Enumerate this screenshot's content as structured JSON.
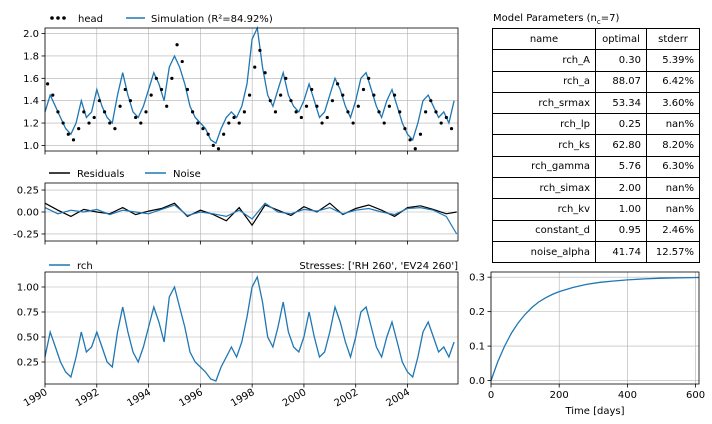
{
  "chart_data": [
    {
      "type": "line",
      "panel": "head",
      "legend": [
        "head",
        "Simulation (R²=84.92%)"
      ],
      "legend_placement": "top-left outside",
      "ylim": [
        0.95,
        2.05
      ],
      "yticks": [
        "1.0",
        "1.2",
        "1.4",
        "1.6",
        "1.8",
        "2.0"
      ],
      "grid": true,
      "series": [
        {
          "name": "head",
          "style": "points",
          "x": [
            1990.1,
            1990.3,
            1990.5,
            1990.7,
            1990.9,
            1991.1,
            1991.3,
            1991.5,
            1991.7,
            1991.9,
            1992.1,
            1992.3,
            1992.5,
            1992.7,
            1992.9,
            1993.1,
            1993.3,
            1993.5,
            1993.7,
            1993.9,
            1994.1,
            1994.3,
            1994.5,
            1994.7,
            1994.9,
            1995.1,
            1995.3,
            1995.5,
            1995.7,
            1995.9,
            1996.1,
            1996.3,
            1996.5,
            1996.7,
            1996.9,
            1997.1,
            1997.3,
            1997.5,
            1997.7,
            1997.9,
            1998.1,
            1998.3,
            1998.5,
            1998.7,
            1998.9,
            1999.1,
            1999.3,
            1999.5,
            1999.7,
            1999.9,
            2000.1,
            2000.3,
            2000.5,
            2000.7,
            2000.9,
            2001.1,
            2001.3,
            2001.5,
            2001.7,
            2001.9,
            2002.1,
            2002.3,
            2002.5,
            2002.7,
            2002.9,
            2003.1,
            2003.3,
            2003.5,
            2003.7,
            2003.9,
            2004.1,
            2004.3,
            2004.5,
            2004.7,
            2004.9,
            2005.1,
            2005.3,
            2005.5,
            2005.7
          ],
          "values": [
            1.55,
            1.45,
            1.3,
            1.2,
            1.1,
            1.05,
            1.15,
            1.3,
            1.2,
            1.25,
            1.4,
            1.3,
            1.2,
            1.15,
            1.35,
            1.5,
            1.4,
            1.25,
            1.2,
            1.3,
            1.45,
            1.6,
            1.5,
            1.35,
            1.6,
            1.9,
            1.75,
            1.5,
            1.3,
            1.2,
            1.15,
            1.1,
            1.0,
            0.97,
            1.1,
            1.2,
            1.25,
            1.2,
            1.3,
            1.45,
            1.7,
            1.85,
            1.65,
            1.4,
            1.3,
            1.45,
            1.6,
            1.4,
            1.3,
            1.25,
            1.35,
            1.5,
            1.35,
            1.2,
            1.25,
            1.4,
            1.55,
            1.45,
            1.3,
            1.2,
            1.35,
            1.5,
            1.6,
            1.45,
            1.3,
            1.2,
            1.35,
            1.45,
            1.3,
            1.15,
            1.05,
            0.97,
            1.1,
            1.3,
            1.4,
            1.3,
            1.2,
            1.25,
            1.15
          ]
        },
        {
          "name": "Simulation (R²=84.92%)",
          "style": "line",
          "x": [
            1990.0,
            1990.2,
            1990.4,
            1990.6,
            1990.8,
            1991.0,
            1991.2,
            1991.4,
            1991.6,
            1991.8,
            1992.0,
            1992.2,
            1992.4,
            1992.6,
            1992.8,
            1993.0,
            1993.2,
            1993.4,
            1993.6,
            1993.8,
            1994.0,
            1994.2,
            1994.4,
            1994.6,
            1994.8,
            1995.0,
            1995.2,
            1995.4,
            1995.6,
            1995.8,
            1996.0,
            1996.2,
            1996.4,
            1996.6,
            1996.8,
            1997.0,
            1997.2,
            1997.4,
            1997.6,
            1997.8,
            1998.0,
            1998.2,
            1998.4,
            1998.6,
            1998.8,
            1999.0,
            1999.2,
            1999.4,
            1999.6,
            1999.8,
            2000.0,
            2000.2,
            2000.4,
            2000.6,
            2000.8,
            2001.0,
            2001.2,
            2001.4,
            2001.6,
            2001.8,
            2002.0,
            2002.2,
            2002.4,
            2002.6,
            2002.8,
            2003.0,
            2003.2,
            2003.4,
            2003.6,
            2003.8,
            2004.0,
            2004.2,
            2004.4,
            2004.6,
            2004.8,
            2005.0,
            2005.2,
            2005.4,
            2005.6,
            2005.8
          ],
          "values": [
            1.3,
            1.45,
            1.35,
            1.25,
            1.15,
            1.1,
            1.2,
            1.4,
            1.25,
            1.3,
            1.5,
            1.35,
            1.25,
            1.2,
            1.45,
            1.65,
            1.45,
            1.3,
            1.25,
            1.35,
            1.5,
            1.65,
            1.55,
            1.4,
            1.7,
            1.8,
            1.7,
            1.55,
            1.35,
            1.25,
            1.2,
            1.15,
            1.05,
            1.02,
            1.15,
            1.25,
            1.3,
            1.25,
            1.35,
            1.55,
            1.95,
            2.05,
            1.7,
            1.45,
            1.35,
            1.5,
            1.65,
            1.45,
            1.35,
            1.3,
            1.4,
            1.55,
            1.4,
            1.25,
            1.3,
            1.45,
            1.6,
            1.5,
            1.35,
            1.25,
            1.4,
            1.6,
            1.65,
            1.5,
            1.35,
            1.25,
            1.4,
            1.5,
            1.35,
            1.2,
            1.1,
            1.05,
            1.2,
            1.4,
            1.45,
            1.35,
            1.25,
            1.3,
            1.2,
            1.4
          ]
        }
      ]
    },
    {
      "type": "line",
      "panel": "residuals",
      "legend": [
        "Residuals",
        "Noise"
      ],
      "ylim": [
        -0.33,
        0.33
      ],
      "yticks": [
        "0.25",
        "0.00",
        "-0.25"
      ],
      "grid": true,
      "series": [
        {
          "name": "Residuals",
          "x": [
            1990.0,
            1990.5,
            1991.0,
            1991.5,
            1992.0,
            1992.5,
            1993.0,
            1993.5,
            1994.0,
            1994.5,
            1995.0,
            1995.5,
            1996.0,
            1996.5,
            1997.0,
            1997.5,
            1998.0,
            1998.5,
            1999.0,
            1999.5,
            2000.0,
            2000.5,
            2001.0,
            2001.5,
            2002.0,
            2002.5,
            2003.0,
            2003.5,
            2004.0,
            2004.5,
            2005.0,
            2005.5,
            2005.9
          ],
          "values": [
            0.1,
            0.02,
            -0.05,
            0.03,
            0.0,
            -0.02,
            0.05,
            -0.03,
            0.01,
            0.04,
            0.1,
            -0.05,
            0.02,
            -0.03,
            -0.1,
            0.05,
            -0.15,
            0.08,
            0.02,
            -0.04,
            0.06,
            0.0,
            0.1,
            -0.03,
            0.04,
            0.08,
            0.02,
            -0.05,
            0.05,
            0.07,
            0.03,
            -0.02,
            0.0
          ]
        },
        {
          "name": "Noise",
          "x": [
            1990.0,
            1990.5,
            1991.0,
            1991.5,
            1992.0,
            1992.5,
            1993.0,
            1993.5,
            1994.0,
            1994.5,
            1995.0,
            1995.5,
            1996.0,
            1996.5,
            1997.0,
            1997.5,
            1998.0,
            1998.5,
            1999.0,
            1999.5,
            2000.0,
            2000.5,
            2001.0,
            2001.5,
            2002.0,
            2002.5,
            2003.0,
            2003.5,
            2004.0,
            2004.5,
            2005.0,
            2005.5,
            2005.9
          ],
          "values": [
            0.05,
            -0.02,
            0.02,
            0.0,
            0.03,
            -0.03,
            0.02,
            0.0,
            -0.02,
            0.03,
            0.08,
            -0.04,
            0.0,
            -0.02,
            -0.05,
            0.02,
            -0.08,
            0.1,
            0.0,
            -0.02,
            0.03,
            0.01,
            0.05,
            -0.02,
            0.02,
            0.04,
            0.0,
            -0.03,
            0.04,
            0.05,
            0.02,
            -0.05,
            -0.25
          ]
        }
      ]
    },
    {
      "type": "line",
      "panel": "contribution",
      "legend": [
        "rch"
      ],
      "title_right": "Stresses: ['RH 260', 'EV24 260']",
      "ylim": [
        0.03,
        1.15
      ],
      "yticks": [
        "0.25",
        "0.50",
        "0.75",
        "1.00"
      ],
      "xlim": [
        1990,
        2005.95
      ],
      "xticks": [
        "1990",
        "1992",
        "1994",
        "1996",
        "1998",
        "2000",
        "2002",
        "2004"
      ],
      "grid": true,
      "series": [
        {
          "name": "rch",
          "x": [
            1990.0,
            1990.2,
            1990.4,
            1990.6,
            1990.8,
            1991.0,
            1991.2,
            1991.4,
            1991.6,
            1991.8,
            1992.0,
            1992.2,
            1992.4,
            1992.6,
            1992.8,
            1993.0,
            1993.2,
            1993.4,
            1993.6,
            1993.8,
            1994.0,
            1994.2,
            1994.4,
            1994.6,
            1994.8,
            1995.0,
            1995.2,
            1995.4,
            1995.6,
            1995.8,
            1996.0,
            1996.2,
            1996.4,
            1996.6,
            1996.8,
            1997.0,
            1997.2,
            1997.4,
            1997.6,
            1997.8,
            1998.0,
            1998.2,
            1998.4,
            1998.6,
            1998.8,
            1999.0,
            1999.2,
            1999.4,
            1999.6,
            1999.8,
            2000.0,
            2000.2,
            2000.4,
            2000.6,
            2000.8,
            2001.0,
            2001.2,
            2001.4,
            2001.6,
            2001.8,
            2002.0,
            2002.2,
            2002.4,
            2002.6,
            2002.8,
            2003.0,
            2003.2,
            2003.4,
            2003.6,
            2003.8,
            2004.0,
            2004.2,
            2004.4,
            2004.6,
            2004.8,
            2005.0,
            2005.2,
            2005.4,
            2005.6,
            2005.8
          ],
          "values": [
            0.3,
            0.55,
            0.4,
            0.25,
            0.15,
            0.1,
            0.3,
            0.55,
            0.35,
            0.4,
            0.55,
            0.4,
            0.25,
            0.2,
            0.55,
            0.8,
            0.55,
            0.35,
            0.25,
            0.4,
            0.6,
            0.8,
            0.65,
            0.45,
            0.9,
            1.0,
            0.8,
            0.6,
            0.35,
            0.25,
            0.2,
            0.15,
            0.08,
            0.06,
            0.2,
            0.3,
            0.4,
            0.3,
            0.45,
            0.7,
            1.0,
            1.1,
            0.85,
            0.5,
            0.4,
            0.6,
            0.85,
            0.55,
            0.4,
            0.35,
            0.5,
            0.75,
            0.5,
            0.3,
            0.35,
            0.55,
            0.8,
            0.65,
            0.45,
            0.3,
            0.5,
            0.75,
            0.8,
            0.6,
            0.4,
            0.3,
            0.5,
            0.65,
            0.45,
            0.25,
            0.15,
            0.1,
            0.3,
            0.55,
            0.65,
            0.5,
            0.35,
            0.4,
            0.3,
            0.45
          ]
        }
      ]
    },
    {
      "type": "line",
      "panel": "step-response",
      "xlabel": "Time [days]",
      "xlim": [
        0,
        610
      ],
      "ylim": [
        -0.01,
        0.315
      ],
      "xticks": [
        0,
        200,
        400,
        600
      ],
      "yticks": [
        "0.0",
        "0.1",
        "0.2",
        "0.3"
      ],
      "grid": true,
      "series": [
        {
          "name": "",
          "x": [
            0,
            20,
            40,
            60,
            80,
            100,
            120,
            140,
            160,
            180,
            200,
            240,
            280,
            320,
            360,
            400,
            450,
            500,
            550,
            610
          ],
          "values": [
            0.0,
            0.055,
            0.1,
            0.138,
            0.168,
            0.192,
            0.212,
            0.228,
            0.24,
            0.25,
            0.258,
            0.27,
            0.279,
            0.285,
            0.289,
            0.292,
            0.295,
            0.297,
            0.298,
            0.299
          ]
        }
      ]
    }
  ],
  "params": {
    "title": "Model Parameters (n",
    "title_sub": "c",
    "title_tail": "=7)",
    "headers": {
      "name": "name",
      "optimal": "optimal",
      "stderr": "stderr"
    },
    "rows": [
      {
        "name": "rch_A",
        "optimal": "0.30",
        "stderr": "5.39%"
      },
      {
        "name": "rch_a",
        "optimal": "88.07",
        "stderr": "6.42%"
      },
      {
        "name": "rch_srmax",
        "optimal": "53.34",
        "stderr": "3.60%"
      },
      {
        "name": "rch_lp",
        "optimal": "0.25",
        "stderr": "nan%"
      },
      {
        "name": "rch_ks",
        "optimal": "62.80",
        "stderr": "8.20%"
      },
      {
        "name": "rch_gamma",
        "optimal": "5.76",
        "stderr": "6.30%"
      },
      {
        "name": "rch_simax",
        "optimal": "2.00",
        "stderr": "nan%"
      },
      {
        "name": "rch_kv",
        "optimal": "1.00",
        "stderr": "nan%"
      },
      {
        "name": "constant_d",
        "optimal": "0.95",
        "stderr": "2.46%"
      },
      {
        "name": "noise_alpha",
        "optimal": "41.74",
        "stderr": "12.57%"
      }
    ]
  },
  "colors": {
    "blue": "#1f77b4",
    "black": "#000000",
    "grid": "#b0b0b0"
  }
}
